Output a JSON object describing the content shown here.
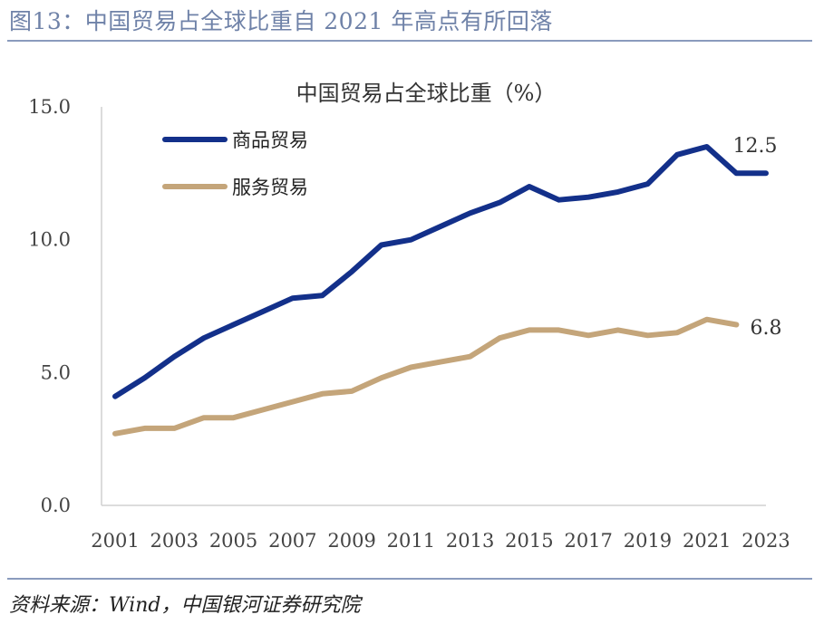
{
  "figure_title": "图13：中国贸易占全球比重自 2021 年高点有所回落",
  "source_note": "资料来源：Wind，中国银河证券研究院",
  "colors": {
    "goods": "#13308a",
    "services": "#c4a57a",
    "rule": "#8a9bbd",
    "title": "#6f82a8"
  },
  "chart_data": {
    "type": "line",
    "title": "中国贸易占全球比重（%）",
    "xlabel": "",
    "ylabel": "",
    "ylim": [
      0,
      15
    ],
    "yticks": [
      "0.0",
      "5.0",
      "10.0",
      "15.0"
    ],
    "x": [
      2001,
      2002,
      2003,
      2004,
      2005,
      2006,
      2007,
      2008,
      2009,
      2010,
      2011,
      2012,
      2013,
      2014,
      2015,
      2016,
      2017,
      2018,
      2019,
      2020,
      2021,
      2022,
      2023
    ],
    "xticks": [
      "2001",
      "2003",
      "2005",
      "2007",
      "2009",
      "2011",
      "2013",
      "2015",
      "2017",
      "2019",
      "2021",
      "2023"
    ],
    "series": [
      {
        "name": "商品贸易",
        "values": [
          4.1,
          4.8,
          5.6,
          6.3,
          6.8,
          7.3,
          7.8,
          7.9,
          8.8,
          9.8,
          10.0,
          10.5,
          11.0,
          11.4,
          12.0,
          11.5,
          11.6,
          11.8,
          12.1,
          13.2,
          13.5,
          12.5,
          12.5
        ],
        "end_label": "12.5"
      },
      {
        "name": "服务贸易",
        "values": [
          2.7,
          2.9,
          2.9,
          3.3,
          3.3,
          3.6,
          3.9,
          4.2,
          4.3,
          4.8,
          5.2,
          5.4,
          5.6,
          6.3,
          6.6,
          6.6,
          6.4,
          6.6,
          6.4,
          6.5,
          7.0,
          6.8,
          null
        ],
        "end_label": "6.8"
      }
    ],
    "grid": false,
    "legend_position": "top-left"
  }
}
